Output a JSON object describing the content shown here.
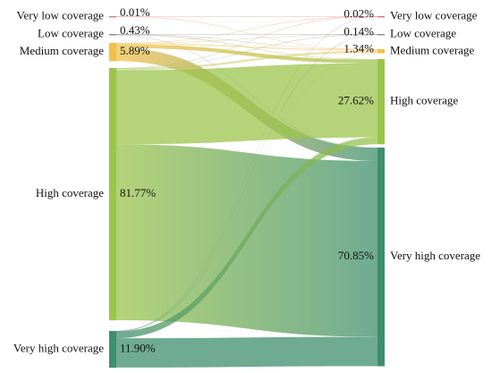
{
  "chart_data": {
    "type": "sankey",
    "sources": {
      "labels": [
        "Very low coverage",
        "Low coverage",
        "Medium coverage",
        "High coverage",
        "Very high coverage"
      ],
      "values": [
        0.01,
        0.43,
        5.89,
        81.77,
        11.9
      ],
      "value_labels": [
        "0.01%",
        "0.43%",
        "5.89%",
        "81.77%",
        "11.90%"
      ],
      "colors": [
        "#e57a7a",
        "#8c8c8c",
        "#f3c04a",
        "#9cc44c",
        "#3f8f6e"
      ]
    },
    "targets": {
      "labels": [
        "Very low coverage",
        "Low coverage",
        "Medium coverage",
        "High coverage",
        "Very high coverage"
      ],
      "values": [
        0.02,
        0.14,
        1.34,
        27.62,
        70.85
      ],
      "value_labels": [
        "0.02%",
        "0.14%",
        "1.34%",
        "27.62%",
        "70.85%"
      ],
      "colors": [
        "#e57a7a",
        "#8c8c8c",
        "#f3c04a",
        "#9cc44c",
        "#3f8f6e"
      ]
    },
    "links": [
      {
        "source": 0,
        "target": 0,
        "value": 0.005
      },
      {
        "source": 0,
        "target": 2,
        "value": 0.005
      },
      {
        "source": 1,
        "target": 1,
        "value": 0.05
      },
      {
        "source": 1,
        "target": 2,
        "value": 0.1
      },
      {
        "source": 1,
        "target": 3,
        "value": 0.2
      },
      {
        "source": 1,
        "target": 4,
        "value": 0.08
      },
      {
        "source": 2,
        "target": 0,
        "value": 0.005
      },
      {
        "source": 2,
        "target": 1,
        "value": 0.03
      },
      {
        "source": 2,
        "target": 2,
        "value": 0.4
      },
      {
        "source": 2,
        "target": 3,
        "value": 1.2
      },
      {
        "source": 2,
        "target": 4,
        "value": 4.25
      },
      {
        "source": 3,
        "target": 0,
        "value": 0.005
      },
      {
        "source": 3,
        "target": 1,
        "value": 0.05
      },
      {
        "source": 3,
        "target": 2,
        "value": 0.7
      },
      {
        "source": 3,
        "target": 3,
        "value": 24.0
      },
      {
        "source": 3,
        "target": 4,
        "value": 57.0
      },
      {
        "source": 4,
        "target": 0,
        "value": 0.005
      },
      {
        "source": 4,
        "target": 1,
        "value": 0.01
      },
      {
        "source": 4,
        "target": 2,
        "value": 0.14
      },
      {
        "source": 4,
        "target": 3,
        "value": 2.2
      },
      {
        "source": 4,
        "target": 4,
        "value": 9.5
      }
    ]
  }
}
